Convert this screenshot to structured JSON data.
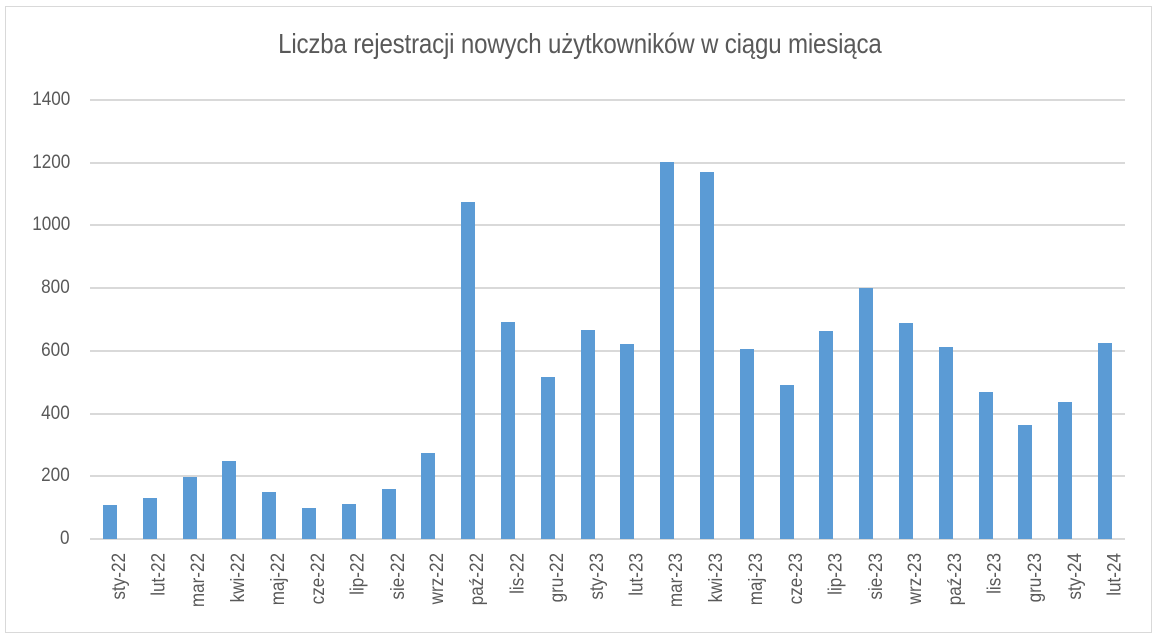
{
  "chart_data": {
    "type": "bar",
    "title": "Liczba rejestracji nowych użytkowników w ciągu miesiąca",
    "xlabel": "",
    "ylabel": "",
    "ylim": [
      0,
      1400
    ],
    "yticks": [
      "0",
      "200",
      "400",
      "600",
      "800",
      "1000",
      "1200",
      "1400"
    ],
    "grid": true,
    "legend": null,
    "bar_color": "#5b9bd5",
    "categories": [
      "sty-22",
      "lut-22",
      "mar-22",
      "kwi-22",
      "maj-22",
      "cze-22",
      "lip-22",
      "sie-22",
      "wrz-22",
      "paź-22",
      "lis-22",
      "gru-22",
      "sty-23",
      "lut-23",
      "mar-23",
      "kwi-23",
      "maj-23",
      "cze-23",
      "lip-23",
      "sie-23",
      "wrz-23",
      "paź-23",
      "lis-23",
      "gru-23",
      "sty-24",
      "lut-24"
    ],
    "values": [
      108,
      131,
      198,
      249,
      151,
      99,
      112,
      160,
      274,
      1075,
      692,
      517,
      666,
      622,
      1203,
      1170,
      605,
      491,
      662,
      802,
      688,
      612,
      469,
      364,
      437,
      624
    ]
  }
}
